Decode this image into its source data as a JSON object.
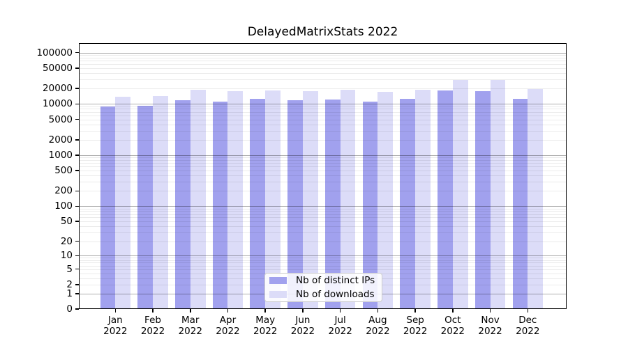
{
  "title": "DelayedMatrixStats 2022",
  "chart_data": {
    "type": "bar",
    "title": "DelayedMatrixStats 2022",
    "scale": "log1p",
    "grid": true,
    "legend_position": "bottom-center",
    "year": "2022",
    "categories": [
      "Jan",
      "Feb",
      "Mar",
      "Apr",
      "May",
      "Jun",
      "Jul",
      "Aug",
      "Sep",
      "Oct",
      "Nov",
      "Dec"
    ],
    "y_ticks": [
      0,
      1,
      2,
      5,
      10,
      20,
      50,
      100,
      200,
      500,
      1000,
      2000,
      5000,
      10000,
      20000,
      50000,
      100000
    ],
    "ylim": [
      0,
      150000
    ],
    "series": [
      {
        "name": "Nb of distinct IPs",
        "color": "#a1a1ee",
        "values": [
          9000,
          9100,
          11800,
          11200,
          12400,
          12000,
          12100,
          11100,
          12400,
          18300,
          17900,
          12600
        ]
      },
      {
        "name": "Nb of downloads",
        "color": "#dcdcf8",
        "values": [
          13700,
          14400,
          18700,
          17900,
          18300,
          17900,
          18900,
          17200,
          19100,
          29300,
          29000,
          19700
        ]
      }
    ]
  }
}
